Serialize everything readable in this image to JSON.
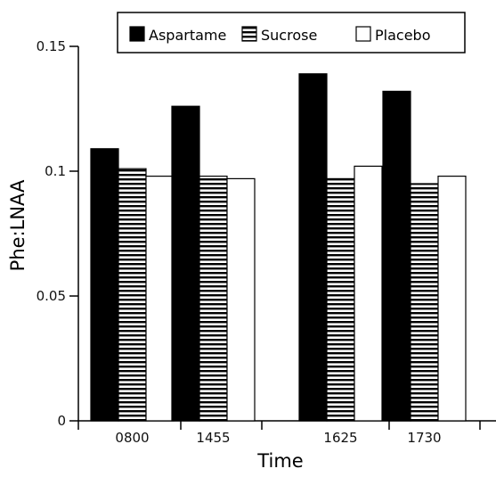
{
  "chart_data": {
    "type": "bar",
    "title": "",
    "xlabel": "Time",
    "ylabel": "Phe:LNAA",
    "categories": [
      "0800",
      "1455",
      "1625",
      "1730"
    ],
    "series": [
      {
        "name": "Aspartame",
        "values": [
          0.109,
          0.126,
          0.139,
          0.132
        ]
      },
      {
        "name": "Sucrose",
        "values": [
          0.101,
          0.098,
          0.097,
          0.095
        ]
      },
      {
        "name": "Placebo",
        "values": [
          0.098,
          0.097,
          0.102,
          0.098
        ]
      }
    ],
    "ylim": [
      0,
      0.15
    ],
    "yticks": [
      {
        "value": 0,
        "label": "0"
      },
      {
        "value": 0.05,
        "label": "0.05"
      },
      {
        "value": 0.1,
        "label": "0.1"
      },
      {
        "value": 0.15,
        "label": "0.15"
      }
    ],
    "grid": false,
    "legend_position": "top"
  }
}
